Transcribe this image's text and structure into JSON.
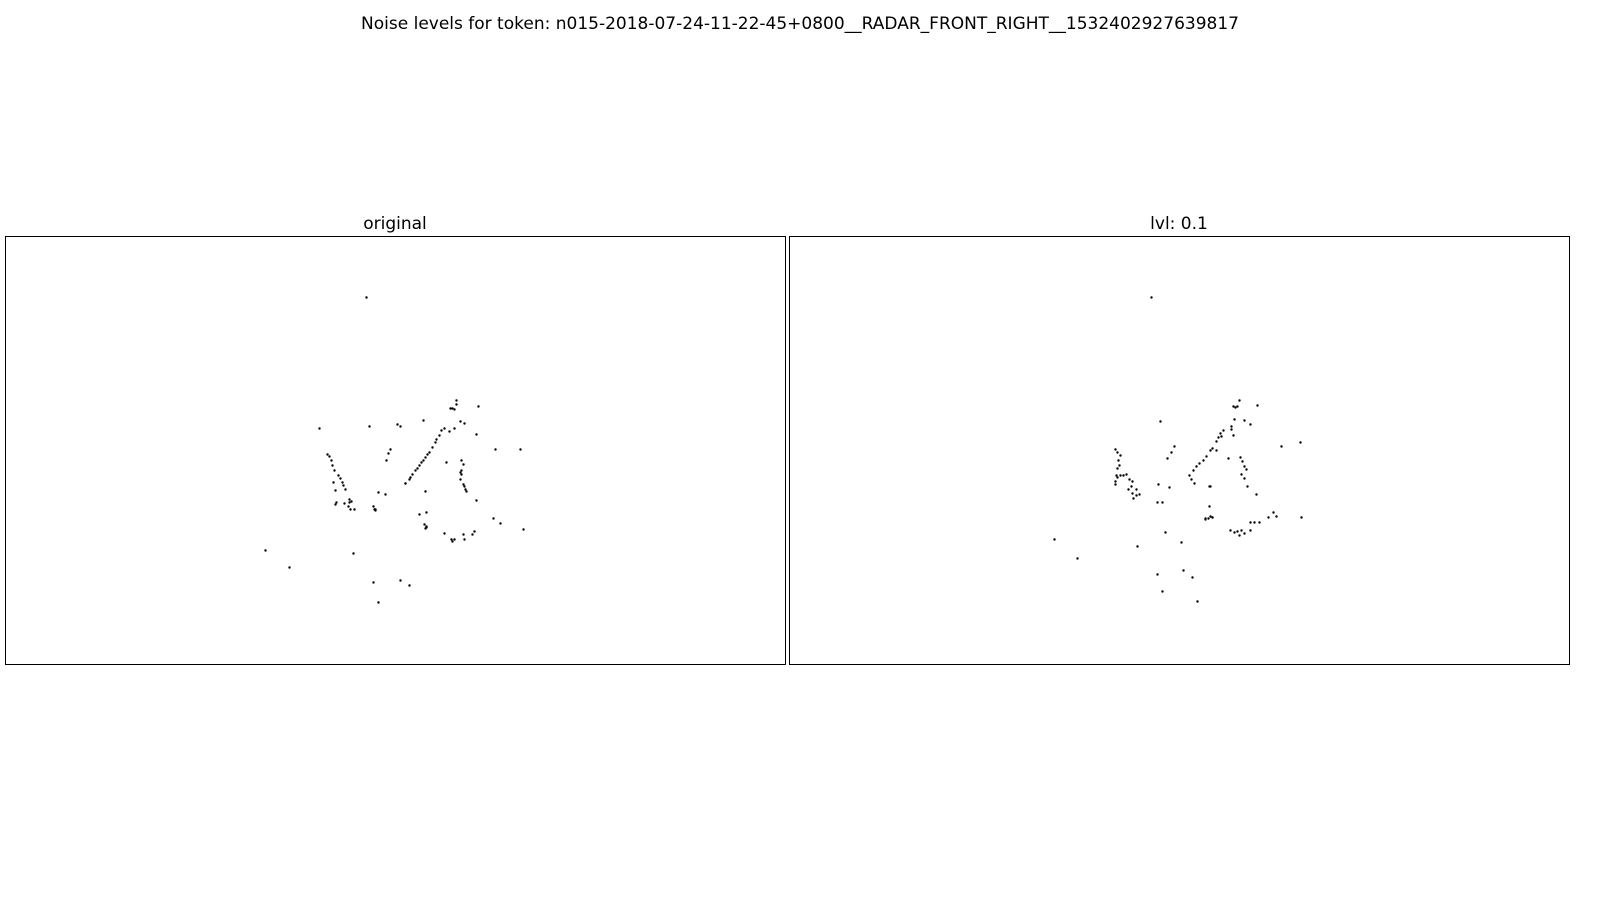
{
  "figure": {
    "title": "Noise levels for token: n015-2018-07-24-11-22-45+0800__RADAR_FRONT_RIGHT__1532402927639817"
  },
  "chart_data": [
    {
      "type": "scatter",
      "title": "original",
      "axes_visible": false,
      "grid": false,
      "marker_color": "#000000",
      "xlim": [
        0,
        780
      ],
      "ylim": [
        0,
        428
      ],
      "points": [
        [
          361,
          367
        ],
        [
          314,
          236
        ],
        [
          364,
          238
        ],
        [
          395,
          238
        ],
        [
          418,
          244
        ],
        [
          451,
          264
        ],
        [
          451,
          260
        ],
        [
          447,
          256
        ],
        [
          445,
          256
        ],
        [
          449,
          255
        ],
        [
          473,
          258
        ],
        [
          459,
          241
        ],
        [
          455,
          243
        ],
        [
          449,
          236
        ],
        [
          444,
          233
        ],
        [
          439,
          236
        ],
        [
          436,
          234
        ],
        [
          434,
          229
        ],
        [
          431,
          225
        ],
        [
          430,
          222
        ],
        [
          427,
          217
        ],
        [
          424,
          212
        ],
        [
          422,
          210
        ],
        [
          420,
          207
        ],
        [
          418,
          204
        ],
        [
          416,
          202
        ],
        [
          414,
          199
        ],
        [
          412,
          196
        ],
        [
          410,
          194
        ],
        [
          407,
          190
        ],
        [
          405,
          187
        ],
        [
          404,
          185
        ],
        [
          400,
          181
        ],
        [
          392,
          240
        ],
        [
          385,
          215
        ],
        [
          383,
          211
        ],
        [
          381,
          204
        ],
        [
          322,
          210
        ],
        [
          324,
          208
        ],
        [
          326,
          204
        ],
        [
          327,
          199
        ],
        [
          329,
          194
        ],
        [
          333,
          189
        ],
        [
          335,
          186
        ],
        [
          337,
          182
        ],
        [
          338,
          179
        ],
        [
          340,
          175
        ],
        [
          328,
          182
        ],
        [
          330,
          174
        ],
        [
          331,
          162
        ],
        [
          330,
          160
        ],
        [
          339,
          161
        ],
        [
          344,
          165
        ],
        [
          344,
          162
        ],
        [
          343,
          158
        ],
        [
          345,
          155
        ],
        [
          346,
          163
        ],
        [
          349,
          155
        ],
        [
          368,
          158
        ],
        [
          369,
          155
        ],
        [
          373,
          172
        ],
        [
          380,
          170
        ],
        [
          370,
          155
        ],
        [
          370,
          154
        ],
        [
          414,
          150
        ],
        [
          419,
          140
        ],
        [
          421,
          138
        ],
        [
          421,
          137
        ],
        [
          420,
          136
        ],
        [
          421,
          152
        ],
        [
          420,
          173
        ],
        [
          400,
          181
        ],
        [
          441,
          202
        ],
        [
          456,
          204
        ],
        [
          458,
          200
        ],
        [
          456,
          194
        ],
        [
          455,
          192
        ],
        [
          456,
          190
        ],
        [
          458,
          180
        ],
        [
          459,
          178
        ],
        [
          461,
          173
        ],
        [
          455,
          185
        ],
        [
          460,
          175
        ],
        [
          471,
          230
        ],
        [
          490,
          215
        ],
        [
          515,
          215
        ],
        [
          471,
          164
        ],
        [
          488,
          146
        ],
        [
          495,
          141
        ],
        [
          518,
          135
        ],
        [
          469,
          133
        ],
        [
          467,
          130
        ],
        [
          459,
          125
        ],
        [
          458,
          130
        ],
        [
          449,
          125
        ],
        [
          446,
          125
        ],
        [
          439,
          131
        ],
        [
          447,
          123
        ],
        [
          260,
          114
        ],
        [
          284,
          97
        ],
        [
          348,
          111
        ],
        [
          368,
          82
        ],
        [
          395,
          84
        ],
        [
          404,
          79
        ],
        [
          373,
          62
        ]
      ]
    },
    {
      "type": "scatter",
      "title": "lvl: 0.1",
      "axes_visible": false,
      "grid": false,
      "marker_color": "#000000",
      "xlim": [
        0,
        780
      ],
      "ylim": [
        0,
        428
      ],
      "points": [
        [
          362,
          367
        ],
        [
          371,
          243
        ],
        [
          385,
          218
        ],
        [
          382,
          212
        ],
        [
          378,
          206
        ],
        [
          405,
          181
        ],
        [
          402,
          185
        ],
        [
          400,
          189
        ],
        [
          404,
          194
        ],
        [
          407,
          198
        ],
        [
          410,
          201
        ],
        [
          414,
          204
        ],
        [
          417,
          208
        ],
        [
          421,
          214
        ],
        [
          423,
          216
        ],
        [
          427,
          223
        ],
        [
          429,
          227
        ],
        [
          431,
          231
        ],
        [
          434,
          234
        ],
        [
          442,
          238
        ],
        [
          445,
          245
        ],
        [
          448,
          258
        ],
        [
          444,
          258
        ],
        [
          446,
          257
        ],
        [
          450,
          264
        ],
        [
          468,
          259
        ],
        [
          455,
          244
        ],
        [
          461,
          240
        ],
        [
          442,
          235
        ],
        [
          444,
          229
        ],
        [
          453,
          203
        ],
        [
          451,
          207
        ],
        [
          455,
          198
        ],
        [
          457,
          195
        ],
        [
          452,
          190
        ],
        [
          455,
          186
        ],
        [
          458,
          178
        ],
        [
          467,
          170
        ],
        [
          420,
          178
        ],
        [
          439,
          206
        ],
        [
          427,
          214
        ],
        [
          432,
          228
        ],
        [
          326,
          215
        ],
        [
          328,
          212
        ],
        [
          331,
          209
        ],
        [
          329,
          204
        ],
        [
          330,
          199
        ],
        [
          328,
          196
        ],
        [
          327,
          189
        ],
        [
          328,
          187
        ],
        [
          326,
          183
        ],
        [
          326,
          180
        ],
        [
          331,
          189
        ],
        [
          334,
          189
        ],
        [
          337,
          190
        ],
        [
          340,
          185
        ],
        [
          343,
          183
        ],
        [
          347,
          169
        ],
        [
          344,
          166
        ],
        [
          350,
          170
        ],
        [
          343,
          171
        ],
        [
          342,
          178
        ],
        [
          347,
          175
        ],
        [
          339,
          175
        ],
        [
          369,
          180
        ],
        [
          380,
          177
        ],
        [
          368,
          162
        ],
        [
          373,
          162
        ],
        [
          421,
          178
        ],
        [
          420,
          158
        ],
        [
          416,
          146
        ],
        [
          419,
          146
        ],
        [
          423,
          147
        ],
        [
          423,
          147
        ],
        [
          416,
          145
        ],
        [
          421,
          148
        ],
        [
          448,
          133
        ],
        [
          452,
          134
        ],
        [
          455,
          131
        ],
        [
          461,
          134
        ],
        [
          461,
          142
        ],
        [
          465,
          142
        ],
        [
          479,
          147
        ],
        [
          484,
          152
        ],
        [
          487,
          148
        ],
        [
          512,
          147
        ],
        [
          470,
          142
        ],
        [
          492,
          218
        ],
        [
          511,
          222
        ],
        [
          450,
          129
        ],
        [
          445,
          132
        ],
        [
          441,
          134
        ],
        [
          376,
          132
        ],
        [
          392,
          122
        ],
        [
          348,
          118
        ],
        [
          265,
          125
        ],
        [
          288,
          106
        ],
        [
          368,
          90
        ],
        [
          394,
          94
        ],
        [
          403,
          87
        ],
        [
          373,
          73
        ],
        [
          408,
          63
        ]
      ]
    }
  ]
}
